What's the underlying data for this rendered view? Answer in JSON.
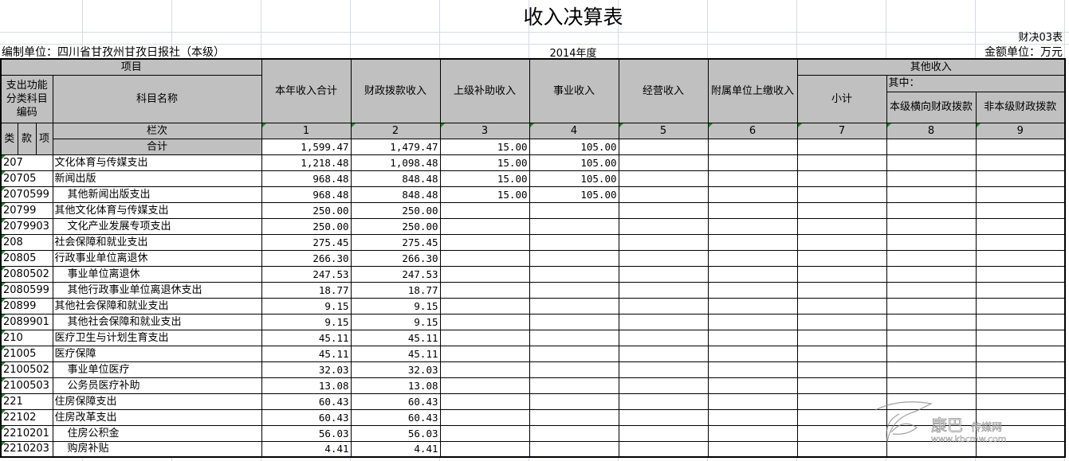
{
  "title": "收入决算表",
  "form_no": "财决03表",
  "unit": "编制单位：四川省甘孜州甘孜日报社（本级）",
  "year": "2014年度",
  "money_unit": "金额单位：万元",
  "header": {
    "item": "项目",
    "code": "支出功能分类科目编码",
    "name": "科目名称",
    "lei": "类",
    "kuan": "款",
    "xiang": "项",
    "lanci": "栏次",
    "total_label": "合计",
    "other": "其他收入",
    "qizhong": "其中：",
    "subtotal": "小计",
    "cols": [
      "本年收入合计",
      "财政拨款收入",
      "上级补助收入",
      "事业收入",
      "经营收入",
      "附属单位上缴收入",
      "小计",
      "本级横向财政拨款",
      "非本级财政拨款"
    ],
    "col_nums": [
      "1",
      "2",
      "3",
      "4",
      "5",
      "6",
      "7",
      "8",
      "9"
    ]
  },
  "total": [
    "1,599.47",
    "1,479.47",
    "15.00",
    "105.00",
    "",
    "",
    "",
    "",
    ""
  ],
  "rows": [
    {
      "code": "207",
      "name": "文化体育与传媒支出",
      "indent": false,
      "v": [
        "1,218.48",
        "1,098.48",
        "15.00",
        "105.00"
      ]
    },
    {
      "code": "20705",
      "name": "新闻出版",
      "indent": false,
      "v": [
        "968.48",
        "848.48",
        "15.00",
        "105.00"
      ]
    },
    {
      "code": "2070599",
      "name": "其他新闻出版支出",
      "indent": true,
      "v": [
        "968.48",
        "848.48",
        "15.00",
        "105.00"
      ]
    },
    {
      "code": "20799",
      "name": "其他文化体育与传媒支出",
      "indent": false,
      "v": [
        "250.00",
        "250.00"
      ]
    },
    {
      "code": "2079903",
      "name": "文化产业发展专项支出",
      "indent": true,
      "v": [
        "250.00",
        "250.00"
      ]
    },
    {
      "code": "208",
      "name": "社会保障和就业支出",
      "indent": false,
      "v": [
        "275.45",
        "275.45"
      ]
    },
    {
      "code": "20805",
      "name": "行政事业单位离退休",
      "indent": false,
      "v": [
        "266.30",
        "266.30"
      ]
    },
    {
      "code": "2080502",
      "name": "事业单位离退休",
      "indent": true,
      "v": [
        "247.53",
        "247.53"
      ]
    },
    {
      "code": "2080599",
      "name": "其他行政事业单位离退休支出",
      "indent": true,
      "v": [
        "18.77",
        "18.77"
      ]
    },
    {
      "code": "20899",
      "name": "其他社会保障和就业支出",
      "indent": false,
      "v": [
        "9.15",
        "9.15"
      ]
    },
    {
      "code": "2089901",
      "name": "其他社会保障和就业支出",
      "indent": true,
      "v": [
        "9.15",
        "9.15"
      ]
    },
    {
      "code": "210",
      "name": "医疗卫生与计划生育支出",
      "indent": false,
      "v": [
        "45.11",
        "45.11"
      ]
    },
    {
      "code": "21005",
      "name": "医疗保障",
      "indent": false,
      "v": [
        "45.11",
        "45.11"
      ]
    },
    {
      "code": "2100502",
      "name": "事业单位医疗",
      "indent": true,
      "v": [
        "32.03",
        "32.03"
      ]
    },
    {
      "code": "2100503",
      "name": "公务员医疗补助",
      "indent": true,
      "v": [
        "13.08",
        "13.08"
      ]
    },
    {
      "code": "221",
      "name": "住房保障支出",
      "indent": false,
      "v": [
        "60.43",
        "60.43"
      ]
    },
    {
      "code": "22102",
      "name": "住房改革支出",
      "indent": false,
      "v": [
        "60.43",
        "60.43"
      ]
    },
    {
      "code": "2210201",
      "name": "住房公积金",
      "indent": true,
      "v": [
        "56.03",
        "56.03"
      ]
    },
    {
      "code": "2210203",
      "name": "购房补贴",
      "indent": true,
      "v": [
        "4.41",
        "4.41"
      ]
    }
  ],
  "watermark": {
    "name": "康巴传媒网",
    "url": "www.kbcmw.com"
  }
}
